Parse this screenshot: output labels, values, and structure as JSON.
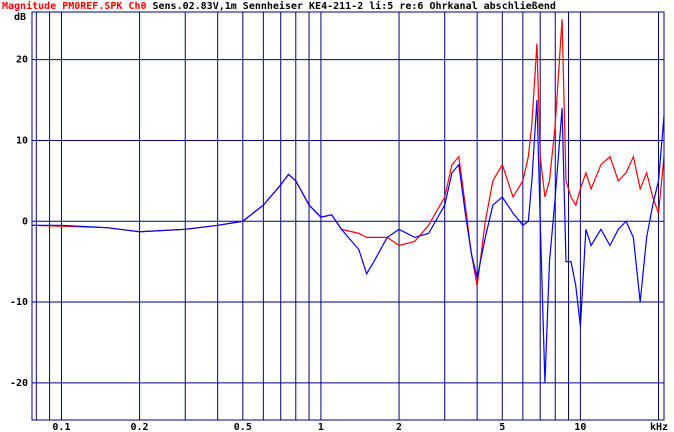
{
  "chart_data": {
    "type": "line",
    "title": "Magnitude PM0REF.SPK Ch0",
    "subtitle": "Sens.02.83V,1m Sennheiser KE4-211-2 li:5 re:6 Ohrkanal abschließend",
    "y_label": "dB",
    "x_label": "kHz",
    "x_log": true,
    "grid": true,
    "xlim": [
      0.077,
      21
    ],
    "ylim": [
      -24.6,
      25.9
    ],
    "xticks": [
      0.1,
      0.2,
      0.5,
      1,
      2,
      5,
      10
    ],
    "xminor": [
      0.08,
      0.09,
      0.3,
      0.4,
      0.6,
      0.7,
      0.8,
      0.9,
      3,
      4,
      6,
      7,
      8,
      9,
      20
    ],
    "yticks": [
      20,
      10,
      0,
      -10,
      -20
    ],
    "x": [
      0.077,
      0.1,
      0.15,
      0.2,
      0.3,
      0.4,
      0.5,
      0.6,
      0.7,
      0.75,
      0.8,
      0.9,
      1.0,
      1.1,
      1.2,
      1.4,
      1.5,
      1.6,
      1.8,
      2.0,
      2.3,
      2.6,
      3.0,
      3.2,
      3.4,
      3.6,
      3.8,
      4.0,
      4.3,
      4.6,
      5.0,
      5.5,
      6.0,
      6.3,
      6.5,
      6.8,
      7.0,
      7.3,
      7.6,
      8.0,
      8.5,
      8.8,
      9.2,
      9.6,
      10,
      10.5,
      11,
      12,
      13,
      14,
      15,
      16,
      17,
      18,
      19,
      20,
      21
    ],
    "series": [
      {
        "name": "li:5",
        "color": "#ff0000",
        "values": [
          -0.5,
          -0.6,
          -0.8,
          -1.3,
          -1,
          -0.5,
          0,
          2,
          4.5,
          5.8,
          5,
          2,
          0.5,
          0.8,
          -1,
          -1.5,
          -2,
          -2,
          -2,
          -3,
          -2.5,
          -0.5,
          3,
          7,
          8,
          2,
          -4,
          -8,
          0,
          5,
          7,
          3,
          5,
          8,
          12,
          22,
          8,
          3,
          5,
          12,
          25,
          5,
          3,
          2,
          4,
          6,
          4,
          7,
          8,
          5,
          6,
          8,
          4,
          6,
          3,
          1,
          8
        ]
      },
      {
        "name": "re:6",
        "color": "#0000ff",
        "values": [
          -0.5,
          -0.5,
          -0.8,
          -1.3,
          -1,
          -0.5,
          0,
          2,
          4.5,
          5.8,
          5,
          2,
          0.5,
          0.8,
          -1,
          -3.5,
          -6.5,
          -5,
          -2,
          -1,
          -2,
          -1.5,
          2,
          6,
          7,
          1,
          -4,
          -7,
          -2,
          2,
          3,
          1,
          -0.5,
          0,
          5,
          15,
          0,
          -20,
          -5,
          3,
          14,
          -5,
          -5,
          -8,
          -13,
          -1,
          -3,
          -1,
          -3,
          -1,
          0,
          -2,
          -10,
          -2,
          2,
          5,
          13
        ]
      }
    ]
  }
}
